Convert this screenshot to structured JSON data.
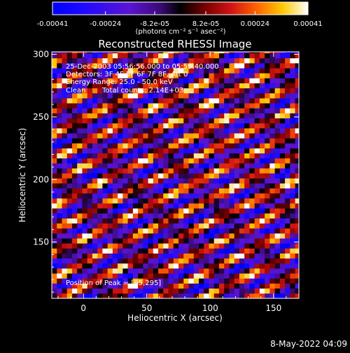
{
  "chart_data": {
    "type": "heatmap",
    "title": "Reconstructed RHESSI Image",
    "xlabel": "Heliocentric X (arcsec)",
    "ylabel": "Heliocentric Y (arcsec)",
    "xlim": [
      -25,
      170
    ],
    "ylim": [
      105,
      302
    ],
    "x_ticks": [
      0,
      50,
      100,
      150
    ],
    "y_ticks": [
      150,
      200,
      250,
      300
    ],
    "x_tick_labels": [
      "0",
      "50",
      "100",
      "150"
    ],
    "y_tick_labels": [
      "150",
      "200",
      "250",
      "300"
    ],
    "grid": false,
    "colorbar": {
      "min": -0.00041,
      "max": 0.00041,
      "tick_values": [
        -0.00041,
        -0.00024,
        -8.2e-05,
        8.2e-05,
        0.00024,
        0.00041
      ],
      "tick_labels": [
        "-0.00041",
        "-0.00024",
        "-8.2e-05",
        "8.2e-05",
        "0.00024",
        "0.00041"
      ],
      "units_label": "(photons cm⁻² s⁻¹ asec⁻²)",
      "stops": [
        {
          "v": 0.0,
          "color": "#0000ff"
        },
        {
          "v": 0.12,
          "color": "#1e0aff"
        },
        {
          "v": 0.3,
          "color": "#5a14d2"
        },
        {
          "v": 0.42,
          "color": "#3c0a78"
        },
        {
          "v": 0.5,
          "color": "#000000"
        },
        {
          "v": 0.6,
          "color": "#7a0000"
        },
        {
          "v": 0.7,
          "color": "#d21414"
        },
        {
          "v": 0.8,
          "color": "#ff6400"
        },
        {
          "v": 0.9,
          "color": "#ffc800"
        },
        {
          "v": 1.0,
          "color": "#ffffff"
        }
      ]
    },
    "pattern": {
      "stripe_direction_deg": 27,
      "stripe_period_arcsec": 17,
      "seed": 7
    },
    "annotations": {
      "time_range": "25-Dec-2003 05:56:56.000 to 05:59:40.000",
      "detectors": "Detectors: 3F 4F 5F 6F 7F 8F, Att 0",
      "energy_range": "Energy Range: 25.0 - 50.0 keV",
      "clean_label": "Clean",
      "total_counts": "Total counts: 2.14E+03",
      "peak_position": "Position of Peak = [95,295]"
    },
    "peak": [
      95,
      295
    ]
  },
  "footer": {
    "date_stamp": "8-May-2022 04:09"
  }
}
